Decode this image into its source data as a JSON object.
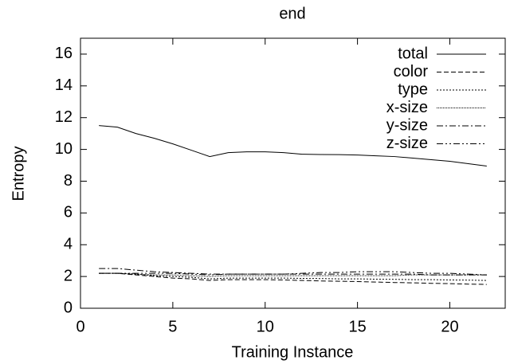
{
  "chart_data": {
    "type": "line",
    "title": "end",
    "x_label": "Training Instance",
    "y_label": "Entropy",
    "x": [
      1,
      2,
      3,
      4,
      5,
      6,
      7,
      8,
      9,
      10,
      11,
      12,
      13,
      14,
      15,
      16,
      17,
      18,
      19,
      20,
      21,
      22
    ],
    "series": [
      {
        "name": "total",
        "color": "#000000",
        "dash": "none",
        "values": [
          11.5,
          11.4,
          11.0,
          10.7,
          10.35,
          9.95,
          9.55,
          9.8,
          9.85,
          9.85,
          9.8,
          9.7,
          9.68,
          9.67,
          9.65,
          9.6,
          9.55,
          9.45,
          9.35,
          9.25,
          9.1,
          8.95
        ]
      },
      {
        "name": "color",
        "color": "#000000",
        "dash": "6,3",
        "values": [
          2.2,
          2.2,
          2.1,
          2.0,
          1.9,
          1.85,
          1.75,
          1.8,
          1.8,
          1.8,
          1.78,
          1.75,
          1.72,
          1.7,
          1.68,
          1.65,
          1.62,
          1.6,
          1.57,
          1.55,
          1.52,
          1.5
        ]
      },
      {
        "name": "type",
        "color": "#000000",
        "dash": "2,2",
        "values": [
          2.2,
          2.2,
          2.15,
          2.05,
          2.0,
          1.95,
          1.85,
          1.9,
          1.9,
          1.9,
          1.9,
          1.88,
          1.87,
          1.85,
          1.85,
          1.83,
          1.82,
          1.8,
          1.8,
          1.78,
          1.77,
          1.75
        ]
      },
      {
        "name": "x-size",
        "color": "#000000",
        "dash": "1,1",
        "values": [
          2.2,
          2.2,
          2.15,
          2.1,
          2.1,
          2.05,
          2.0,
          2.05,
          2.05,
          2.05,
          2.05,
          2.05,
          2.05,
          2.05,
          2.05,
          2.05,
          2.05,
          2.1,
          2.1,
          2.1,
          2.1,
          2.1
        ]
      },
      {
        "name": "y-size",
        "color": "#000000",
        "dash": "8,3,2,3",
        "values": [
          2.5,
          2.5,
          2.4,
          2.3,
          2.25,
          2.2,
          2.15,
          2.15,
          2.15,
          2.15,
          2.15,
          2.15,
          2.15,
          2.15,
          2.15,
          2.15,
          2.15,
          2.15,
          2.1,
          2.1,
          2.1,
          2.1
        ]
      },
      {
        "name": "z-size",
        "color": "#000000",
        "dash": "8,3,2,3,2,3",
        "values": [
          2.2,
          2.2,
          2.2,
          2.2,
          2.2,
          2.15,
          2.1,
          2.15,
          2.15,
          2.15,
          2.15,
          2.2,
          2.25,
          2.25,
          2.3,
          2.3,
          2.3,
          2.25,
          2.2,
          2.2,
          2.15,
          2.1
        ]
      }
    ],
    "xlim": [
      0,
      23
    ],
    "xticks": [
      0,
      5,
      10,
      15,
      20
    ],
    "ylim": [
      0,
      17
    ],
    "yticks": [
      0,
      2,
      4,
      6,
      8,
      10,
      12,
      14,
      16
    ],
    "grid": false,
    "legend": "top-right"
  }
}
